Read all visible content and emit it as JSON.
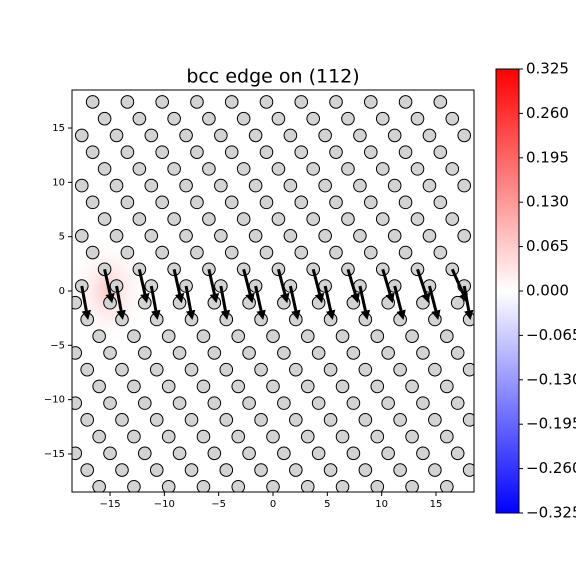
{
  "chart_data": {
    "type": "scatter",
    "title": "bcc edge on (112)",
    "xlim": [
      -18.5,
      18.5
    ],
    "ylim": [
      -18.5,
      18.5
    ],
    "xticks": [
      {
        "value": -15,
        "label": "−15"
      },
      {
        "value": -10,
        "label": "−10"
      },
      {
        "value": -5,
        "label": "−5"
      },
      0,
      5,
      10,
      15
    ],
    "yticks": [
      {
        "value": -15,
        "label": "−15"
      },
      {
        "value": -10,
        "label": "−10"
      },
      {
        "value": -5,
        "label": "−5"
      },
      0,
      5,
      10,
      15
    ],
    "marker_color": "#d3d3d3",
    "arrow_color": "#000000",
    "rows": [
      {
        "y": 17.4,
        "x": [
          -16.6,
          -13.4,
          -10.2,
          -7.0,
          -3.8,
          -0.6,
          2.6,
          5.8,
          9.0,
          12.2,
          15.4
        ]
      },
      {
        "y": 15.86,
        "x": [
          -15.5,
          -12.3,
          -9.1,
          -5.9,
          -2.7,
          0.5,
          3.7,
          6.9,
          10.1,
          13.3,
          16.5
        ]
      },
      {
        "y": 14.32,
        "x": [
          -17.6,
          -14.4,
          -11.2,
          -8.0,
          -4.8,
          -1.6,
          1.6,
          4.8,
          8.0,
          11.2,
          14.4,
          17.6
        ]
      },
      {
        "y": 12.78,
        "x": [
          -16.6,
          -13.4,
          -10.2,
          -7.0,
          -3.8,
          -0.6,
          2.6,
          5.8,
          9.0,
          12.2,
          15.4
        ]
      },
      {
        "y": 11.24,
        "x": [
          -15.5,
          -12.3,
          -9.1,
          -5.9,
          -2.7,
          0.5,
          3.7,
          6.9,
          10.1,
          13.3,
          16.5
        ]
      },
      {
        "y": 9.7,
        "x": [
          -17.6,
          -14.4,
          -11.2,
          -8.0,
          -4.8,
          -1.6,
          1.6,
          4.8,
          8.0,
          11.2,
          14.4,
          17.6
        ]
      },
      {
        "y": 8.16,
        "x": [
          -16.6,
          -13.4,
          -10.2,
          -7.0,
          -3.8,
          -0.6,
          2.6,
          5.8,
          9.0,
          12.2,
          15.4
        ]
      },
      {
        "y": 6.62,
        "x": [
          -15.5,
          -12.3,
          -9.1,
          -5.9,
          -2.7,
          0.5,
          3.7,
          6.9,
          10.1,
          13.3,
          16.5
        ]
      },
      {
        "y": 5.08,
        "x": [
          -17.6,
          -14.4,
          -11.2,
          -8.0,
          -4.8,
          -1.6,
          1.6,
          4.8,
          8.0,
          11.2,
          14.4,
          17.6
        ]
      },
      {
        "y": 3.54,
        "x": [
          -16.6,
          -13.4,
          -10.2,
          -7.0,
          -3.8,
          -0.6,
          2.6,
          5.8,
          9.0,
          12.2,
          15.4
        ]
      },
      {
        "y": 2.0,
        "x": [
          -15.5,
          -12.3,
          -9.1,
          -5.9,
          -2.7,
          0.5,
          3.7,
          6.9,
          10.1,
          13.3,
          16.5
        ]
      },
      {
        "y": 0.46,
        "x": [
          -17.6,
          -14.4,
          -11.2,
          -8.0,
          -4.8,
          -1.6,
          1.6,
          4.8,
          8.0,
          11.2,
          14.4,
          17.6
        ]
      },
      {
        "y": -1.08,
        "x": [
          -18.2,
          -15.0,
          -11.8,
          -8.6,
          -5.4,
          -2.2,
          1.0,
          4.2,
          7.4,
          10.6,
          13.8,
          17.0
        ]
      },
      {
        "y": -2.62,
        "x": [
          -17.1,
          -13.9,
          -10.7,
          -7.5,
          -4.3,
          -1.1,
          2.1,
          5.3,
          8.5,
          11.7,
          14.9,
          18.1
        ]
      },
      {
        "y": -4.16,
        "x": [
          -16.0,
          -12.8,
          -9.6,
          -6.4,
          -3.2,
          0.0,
          3.2,
          6.4,
          9.6,
          12.8,
          16.0
        ]
      },
      {
        "y": -5.7,
        "x": [
          -18.2,
          -15.0,
          -11.8,
          -8.6,
          -5.4,
          -2.2,
          1.0,
          4.2,
          7.4,
          10.6,
          13.8,
          17.0
        ]
      },
      {
        "y": -7.24,
        "x": [
          -17.1,
          -13.9,
          -10.7,
          -7.5,
          -4.3,
          -1.1,
          2.1,
          5.3,
          8.5,
          11.7,
          14.9,
          18.1
        ]
      },
      {
        "y": -8.78,
        "x": [
          -16.0,
          -12.8,
          -9.6,
          -6.4,
          -3.2,
          0.0,
          3.2,
          6.4,
          9.6,
          12.8,
          16.0
        ]
      },
      {
        "y": -10.32,
        "x": [
          -18.2,
          -15.0,
          -11.8,
          -8.6,
          -5.4,
          -2.2,
          1.0,
          4.2,
          7.4,
          10.6,
          13.8,
          17.0
        ]
      },
      {
        "y": -11.86,
        "x": [
          -17.1,
          -13.9,
          -10.7,
          -7.5,
          -4.3,
          -1.1,
          2.1,
          5.3,
          8.5,
          11.7,
          14.9,
          18.1
        ]
      },
      {
        "y": -13.4,
        "x": [
          -16.0,
          -12.8,
          -9.6,
          -6.4,
          -3.2,
          0.0,
          3.2,
          6.4,
          9.6,
          12.8,
          16.0
        ]
      },
      {
        "y": -14.94,
        "x": [
          -18.2,
          -15.0,
          -11.8,
          -8.6,
          -5.4,
          -2.2,
          1.0,
          4.2,
          7.4,
          10.6,
          13.8,
          17.0
        ]
      },
      {
        "y": -16.48,
        "x": [
          -17.1,
          -13.9,
          -10.7,
          -7.5,
          -4.3,
          -1.1,
          2.1,
          5.3,
          8.5,
          11.7,
          14.9,
          18.1
        ]
      },
      {
        "y": -18.02,
        "x": [
          -16.0,
          -12.8,
          -9.6,
          -6.4,
          -3.2,
          0.0,
          3.2,
          6.4,
          9.6,
          12.8,
          16.0
        ]
      }
    ],
    "arrows": [
      {
        "y": 2.0,
        "x": [
          -15.5,
          -12.3,
          -9.1,
          -5.9,
          -2.7,
          0.5,
          3.7,
          6.9,
          10.1,
          13.3,
          16.5
        ],
        "u": [
          0.6,
          0.6,
          0.6,
          0.6,
          0.7,
          0.7,
          0.7,
          0.8,
          0.8,
          0.9,
          1.2
        ],
        "v": [
          -2.7,
          -2.7,
          -2.7,
          -2.7,
          -2.7,
          -2.7,
          -2.7,
          -2.7,
          -2.7,
          -2.7,
          -2.7
        ]
      },
      {
        "y": 0.46,
        "x": [
          -17.6,
          -14.4,
          -11.2,
          -8.0,
          -4.8,
          -1.6,
          1.6,
          4.8,
          8.0,
          11.2,
          14.4,
          17.6
        ],
        "u": [
          0.5,
          0.5,
          0.5,
          0.5,
          0.5,
          0.6,
          0.6,
          0.6,
          0.6,
          0.7,
          0.7,
          0.5
        ],
        "v": [
          -2.7,
          -2.7,
          -2.7,
          -2.7,
          -2.7,
          -2.7,
          -2.7,
          -2.7,
          -2.7,
          -2.7,
          -2.7,
          -2.7
        ]
      }
    ],
    "colorbar": {
      "cmap": [
        "#0000ff",
        "#ffffff",
        "#ff0000"
      ],
      "clim": [
        -0.325,
        0.325
      ],
      "ticks": [
        0.325,
        {
          "value": 0.26,
          "label": "0.260"
        },
        0.195,
        {
          "value": 0.13,
          "label": "0.130"
        },
        0.065,
        {
          "value": 0,
          "label": "0.000"
        },
        {
          "value": -0.065,
          "label": "−0.065"
        },
        {
          "value": -0.13,
          "label": "−0.130"
        },
        {
          "value": -0.195,
          "label": "−0.195"
        },
        {
          "value": -0.26,
          "label": "−0.260"
        },
        {
          "value": -0.325,
          "label": "−0.325"
        }
      ]
    }
  }
}
